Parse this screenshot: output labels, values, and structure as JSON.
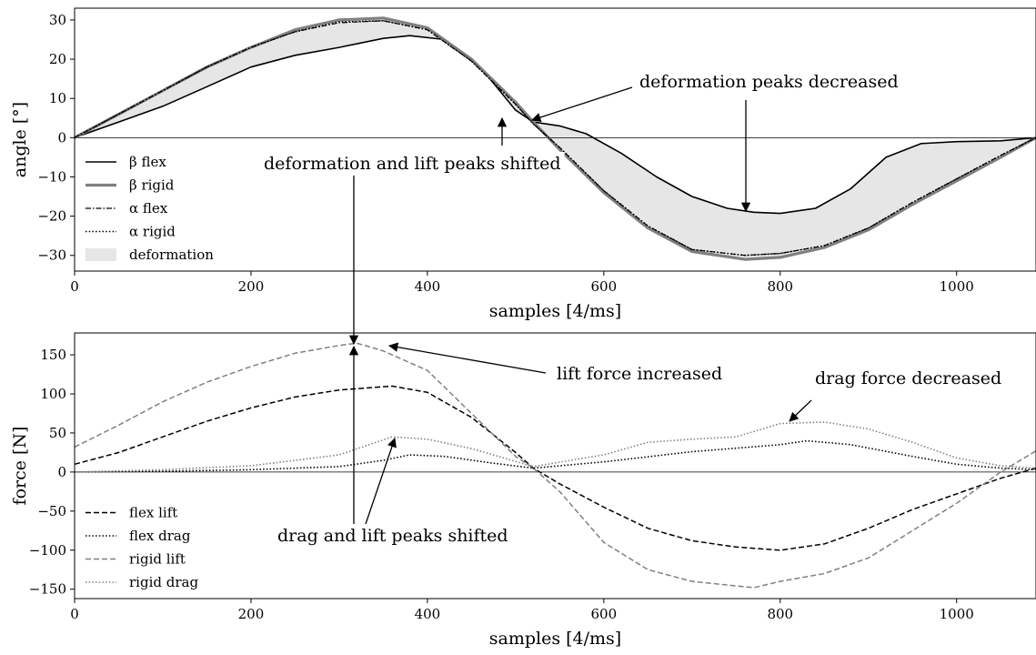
{
  "chart_data": [
    {
      "type": "line",
      "title": "",
      "xlabel": "samples [4/ms]",
      "ylabel": "angle [°]",
      "xlim": [
        0,
        1090
      ],
      "ylim": [
        -34,
        33
      ],
      "xticks": [
        0,
        200,
        400,
        600,
        800,
        1000
      ],
      "yticks": [
        -30,
        -20,
        -10,
        0,
        10,
        20,
        30
      ],
      "legend_position": "lower-left",
      "grid": false,
      "zero_line": true,
      "series": [
        {
          "name": "β flex",
          "style": "solid",
          "color": "#000000",
          "x": [
            0,
            50,
            100,
            150,
            200,
            250,
            300,
            350,
            380,
            420,
            460,
            500,
            520,
            550,
            580,
            620,
            660,
            700,
            740,
            770,
            800,
            840,
            880,
            920,
            960,
            1000,
            1050,
            1090
          ],
          "y": [
            0,
            4,
            8,
            13,
            18,
            21,
            23,
            25.3,
            26,
            25,
            18,
            7,
            4,
            3,
            1,
            -4,
            -10,
            -15,
            -18,
            -19,
            -19.3,
            -18,
            -13,
            -5,
            -1.5,
            -1,
            -0.8,
            0
          ]
        },
        {
          "name": "β rigid",
          "style": "solid-thick",
          "color": "#808080",
          "x": [
            0,
            50,
            100,
            150,
            200,
            250,
            300,
            350,
            400,
            450,
            500,
            520,
            550,
            600,
            650,
            700,
            760,
            800,
            850,
            900,
            950,
            1000,
            1050,
            1090
          ],
          "y": [
            0,
            6,
            12,
            18,
            23,
            27.5,
            30,
            30.5,
            28,
            20,
            9,
            4,
            -3,
            -14,
            -23,
            -29,
            -31,
            -30.5,
            -28,
            -23.5,
            -17,
            -11,
            -5,
            0
          ]
        },
        {
          "name": "α flex",
          "style": "dashdot",
          "color": "#000000",
          "x": [
            0,
            50,
            100,
            150,
            200,
            250,
            300,
            350,
            400,
            450,
            500,
            520,
            550,
            600,
            650,
            700,
            760,
            800,
            850,
            900,
            950,
            1000,
            1050,
            1090
          ],
          "y": [
            0,
            6,
            12,
            18,
            23,
            27,
            29.3,
            29.8,
            27.5,
            19.5,
            8.5,
            3.5,
            -2.5,
            -13.5,
            -22.5,
            -28.5,
            -30,
            -29.5,
            -27.5,
            -23,
            -16.5,
            -10.5,
            -4.5,
            0
          ]
        },
        {
          "name": "α rigid",
          "style": "dotted",
          "color": "#000000",
          "x": [
            0,
            50,
            100,
            150,
            200,
            250,
            300,
            350,
            400,
            450,
            500,
            520,
            550,
            600,
            650,
            700,
            760,
            800,
            850,
            900,
            950,
            1000,
            1050,
            1090
          ],
          "y": [
            0,
            6,
            12,
            18,
            23,
            27,
            29.5,
            29.8,
            27.5,
            19.5,
            8.5,
            3.5,
            -2.5,
            -13.5,
            -22.5,
            -28.5,
            -30,
            -29.5,
            -27.5,
            -23,
            -16.5,
            -10.5,
            -4.5,
            0
          ]
        }
      ],
      "fill": {
        "name": "deformation",
        "color": "#e6e6e6",
        "between": [
          "β flex",
          "β rigid"
        ]
      },
      "annotations": [
        {
          "text": "deformation peaks decreased"
        },
        {
          "text": "deformation and lift peaks shifted"
        }
      ]
    },
    {
      "type": "line",
      "title": "",
      "xlabel": "samples [4/ms]",
      "ylabel": "force [N]",
      "xlim": [
        0,
        1090
      ],
      "ylim": [
        -162,
        178
      ],
      "xticks": [
        0,
        200,
        400,
        600,
        800,
        1000
      ],
      "yticks": [
        -150,
        -100,
        -50,
        0,
        50,
        100,
        150
      ],
      "legend_position": "lower-left",
      "grid": false,
      "zero_line": true,
      "series": [
        {
          "name": "flex lift",
          "style": "dashed",
          "color": "#000000",
          "x": [
            0,
            50,
            100,
            150,
            200,
            250,
            300,
            360,
            400,
            450,
            500,
            520,
            550,
            600,
            650,
            700,
            750,
            800,
            850,
            900,
            950,
            1000,
            1050,
            1090
          ],
          "y": [
            10,
            25,
            45,
            65,
            82,
            96,
            105,
            110,
            102,
            70,
            25,
            5,
            -15,
            -45,
            -72,
            -88,
            -96,
            -100,
            -92,
            -72,
            -48,
            -28,
            -8,
            5
          ]
        },
        {
          "name": "flex drag",
          "style": "dotted",
          "color": "#000000",
          "x": [
            0,
            100,
            200,
            300,
            350,
            380,
            420,
            470,
            520,
            600,
            700,
            800,
            830,
            880,
            950,
            1000,
            1050,
            1090
          ],
          "y": [
            0,
            1,
            3,
            7,
            15,
            22,
            20,
            12,
            5,
            13,
            26,
            35,
            40,
            35,
            20,
            10,
            5,
            3
          ]
        },
        {
          "name": "rigid lift",
          "style": "dashed",
          "color": "#808080",
          "x": [
            0,
            50,
            100,
            150,
            200,
            250,
            300,
            320,
            350,
            400,
            450,
            500,
            520,
            550,
            600,
            650,
            700,
            770,
            800,
            850,
            900,
            950,
            1000,
            1050,
            1090
          ],
          "y": [
            32,
            60,
            90,
            115,
            135,
            152,
            162,
            165,
            155,
            130,
            75,
            20,
            5,
            -25,
            -90,
            -125,
            -140,
            -148,
            -140,
            -130,
            -110,
            -75,
            -40,
            0,
            27
          ]
        },
        {
          "name": "rigid drag",
          "style": "dotted",
          "color": "#808080",
          "x": [
            0,
            100,
            200,
            300,
            360,
            400,
            450,
            520,
            600,
            650,
            700,
            750,
            800,
            850,
            900,
            950,
            1000,
            1050,
            1090
          ],
          "y": [
            0,
            3,
            8,
            22,
            45,
            42,
            30,
            7,
            22,
            38,
            42,
            45,
            62,
            64,
            55,
            38,
            18,
            8,
            5
          ]
        }
      ],
      "annotations": [
        {
          "text": "lift force increased"
        },
        {
          "text": "drag force decreased"
        },
        {
          "text": "drag and lift peaks shifted"
        }
      ]
    }
  ]
}
